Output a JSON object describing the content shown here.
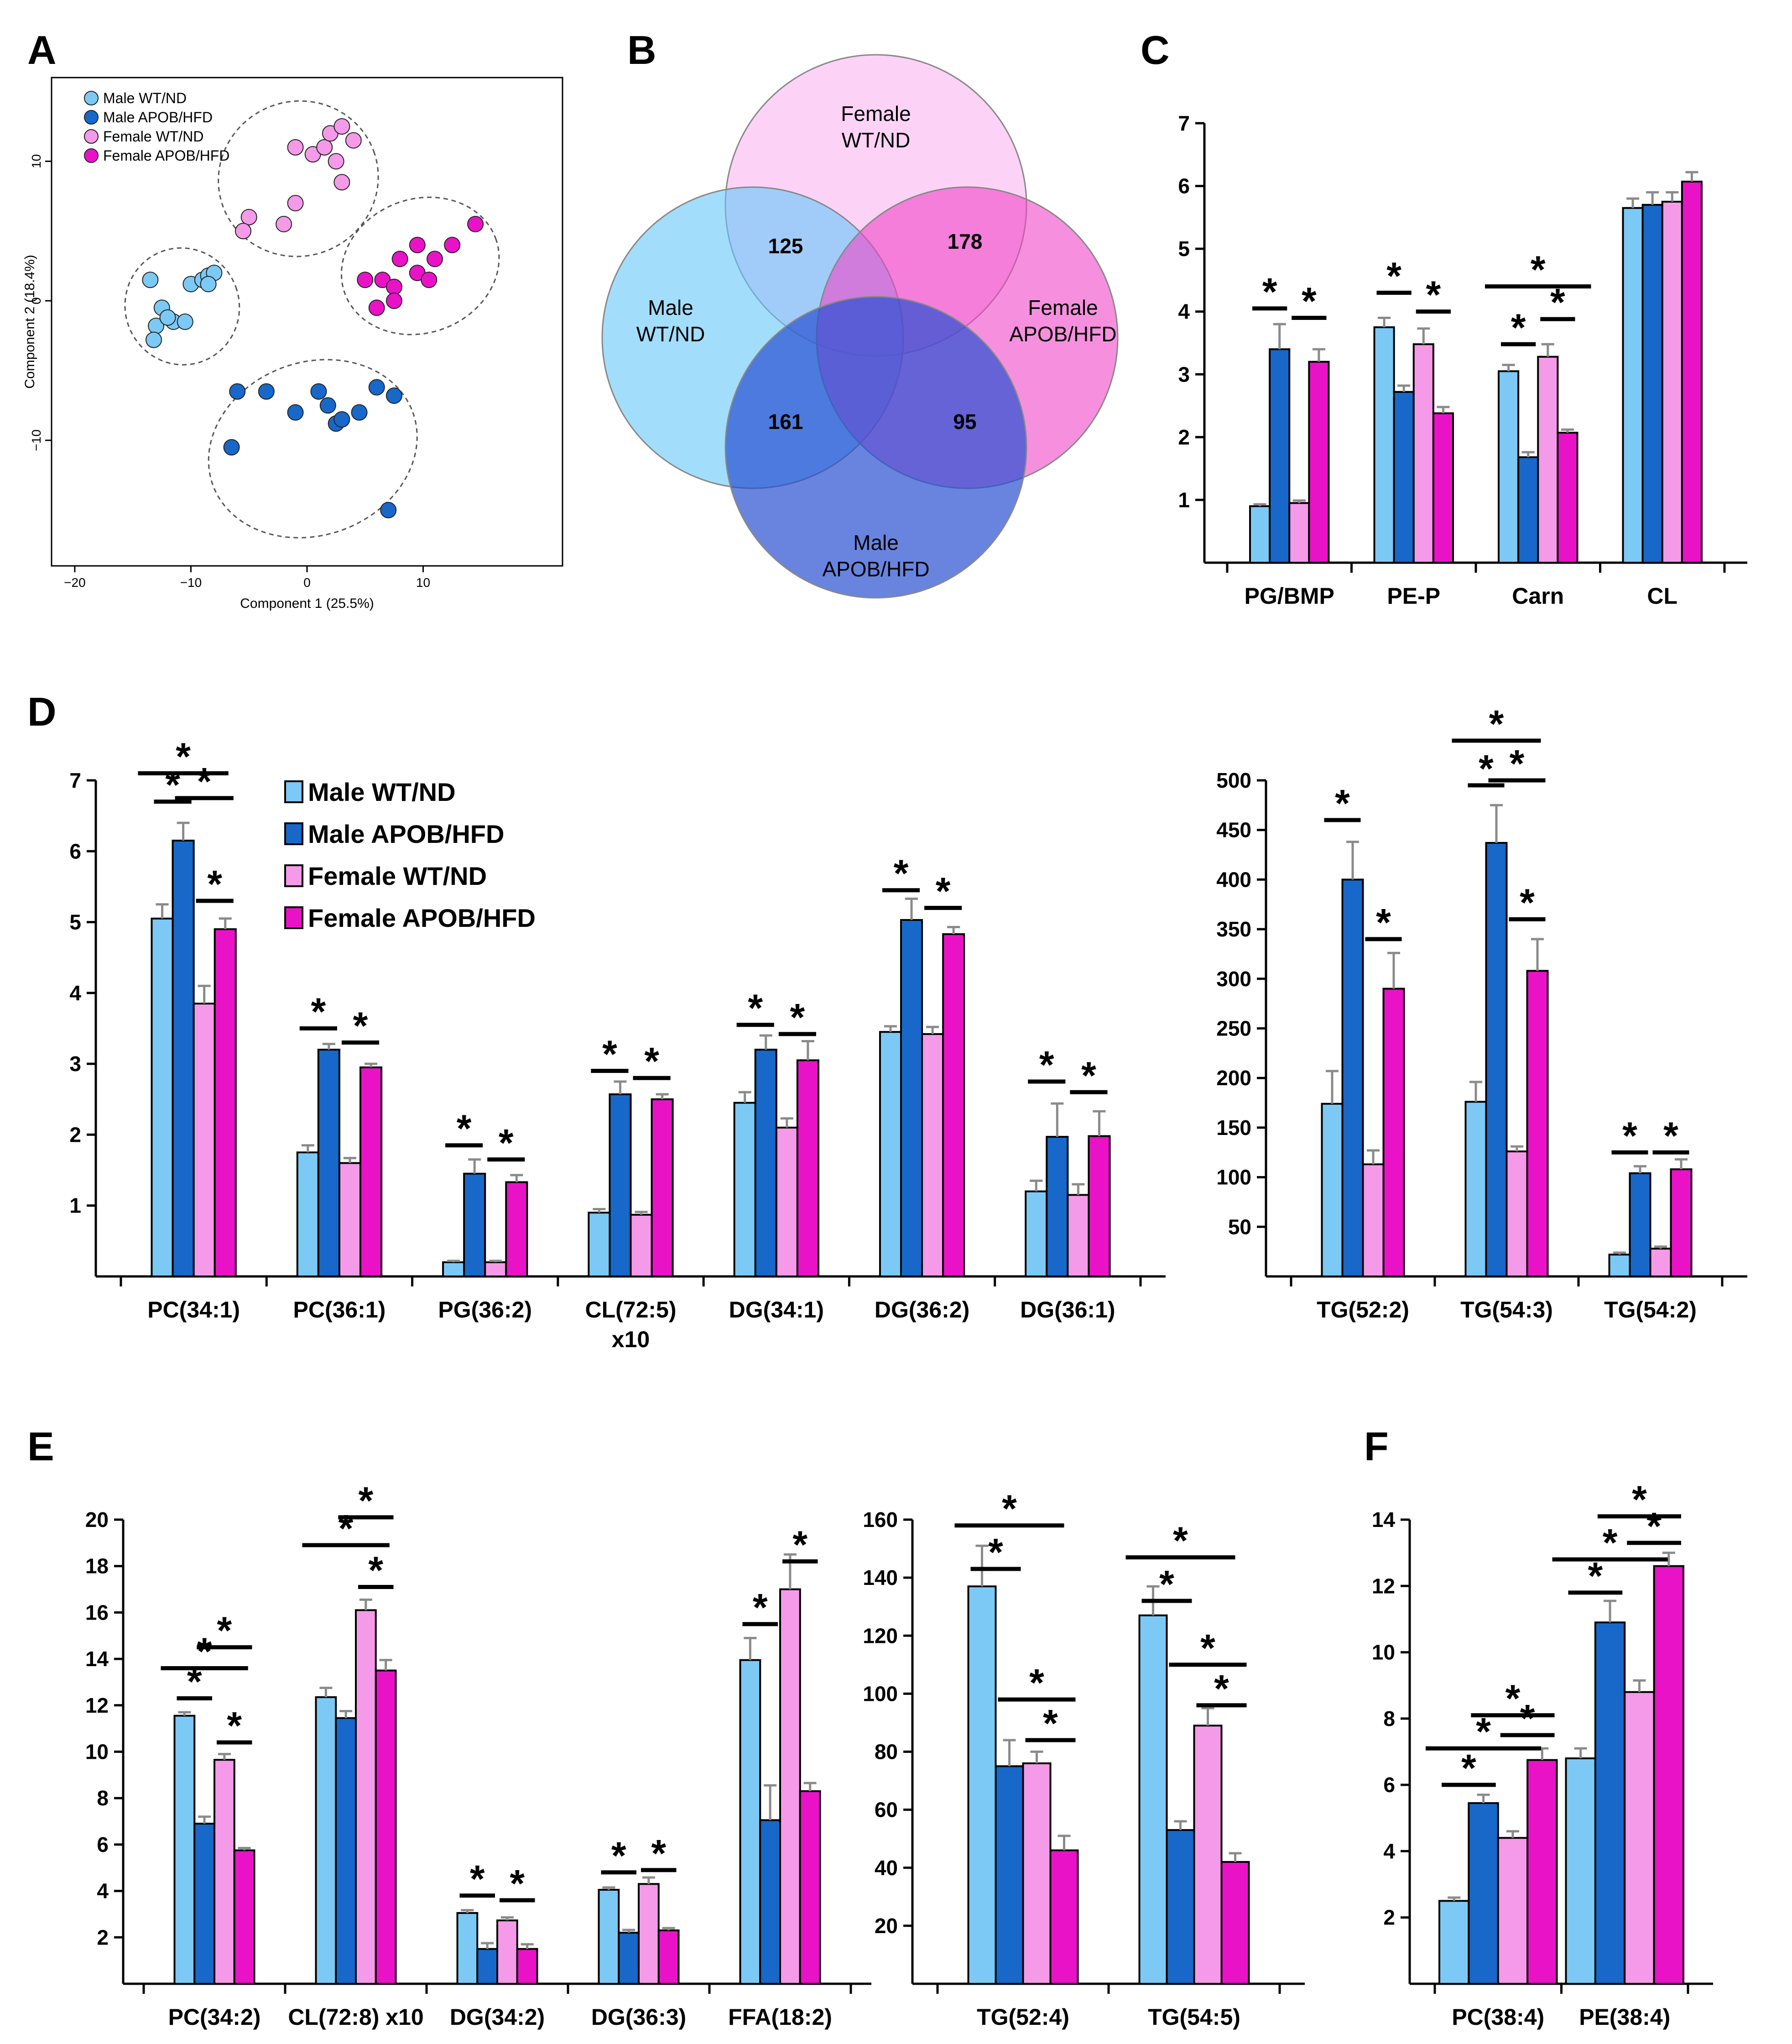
{
  "colors": {
    "male_wt": "#7cc9f5",
    "male_apob": "#1768c9",
    "female_wt": "#f49ae8",
    "female_apob": "#ea12c7"
  },
  "chart_data": [
    {
      "id": "A",
      "panel_label": "A",
      "type": "scatter",
      "xlabel": "Component 1 (25.5%)",
      "ylabel": "Component 2 (18.4%)",
      "xlim": [
        -22,
        22
      ],
      "ylim": [
        -19,
        16
      ],
      "xticks": [
        "−20",
        "−10",
        "0",
        "10"
      ],
      "yticks": [
        "−10",
        "0",
        "10"
      ],
      "series": [
        {
          "name": "Male WT/ND",
          "points": [
            [
              -13.5,
              1.5
            ],
            [
              -12.5,
              -0.5
            ],
            [
              -13,
              -1.8
            ],
            [
              -13.2,
              -2.8
            ],
            [
              -11.5,
              -1.5
            ],
            [
              -10,
              1.2
            ],
            [
              -9,
              1.5
            ],
            [
              -8.5,
              1.8
            ],
            [
              -8,
              2
            ],
            [
              -10.5,
              -1.5
            ],
            [
              -8.5,
              1.2
            ],
            [
              -12,
              -1.2
            ]
          ]
        },
        {
          "name": "Male APOB/HFD",
          "points": [
            [
              -6,
              -6.5
            ],
            [
              -3.5,
              -6.5
            ],
            [
              -1,
              -8
            ],
            [
              1,
              -6.5
            ],
            [
              1.8,
              -7.5
            ],
            [
              2.5,
              -8.8
            ],
            [
              3,
              -8.5
            ],
            [
              4.5,
              -8
            ],
            [
              6,
              -6.2
            ],
            [
              7.5,
              -6.8
            ],
            [
              -6.5,
              -10.5
            ],
            [
              7,
              -15
            ]
          ]
        },
        {
          "name": "Female WT/ND",
          "points": [
            [
              -5,
              6
            ],
            [
              -2,
              5.5
            ],
            [
              -1,
              11
            ],
            [
              0.5,
              10.5
            ],
            [
              1.5,
              11
            ],
            [
              2,
              12
            ],
            [
              3,
              12.5
            ],
            [
              4,
              11.5
            ],
            [
              2.5,
              10
            ],
            [
              3,
              8.5
            ],
            [
              -1,
              7
            ],
            [
              -5.5,
              5
            ]
          ]
        },
        {
          "name": "Female APOB/HFD",
          "points": [
            [
              5,
              1.5
            ],
            [
              6.5,
              1.5
            ],
            [
              7.5,
              1
            ],
            [
              9.5,
              2
            ],
            [
              10.5,
              1.5
            ],
            [
              11,
              3
            ],
            [
              12.5,
              4
            ],
            [
              14.5,
              5.5
            ],
            [
              8,
              3
            ],
            [
              9.5,
              4
            ],
            [
              7.5,
              0
            ],
            [
              6,
              -0.5
            ]
          ]
        }
      ],
      "legend": [
        "Male WT/ND",
        "Male APOB/HFD",
        "Female WT/ND",
        "Female APOB/HFD"
      ]
    },
    {
      "id": "B",
      "panel_label": "B",
      "type": "venn",
      "sets": [
        {
          "name": "Female",
          "name2": "WT/ND"
        },
        {
          "name": "Male",
          "name2": "WT/ND"
        },
        {
          "name": "Female",
          "name2": "APOB/HFD"
        },
        {
          "name": "Male",
          "name2": "APOB/HFD"
        }
      ],
      "counts": [
        "125",
        "178",
        "161",
        "95"
      ]
    },
    {
      "id": "C",
      "panel_label": "C",
      "type": "bar",
      "categories": [
        "PG/BMP",
        "PE-P",
        "Carn",
        "CL"
      ],
      "series": [
        {
          "name": "Male WT/ND",
          "values": [
            0.9,
            3.75,
            3.05,
            5.65
          ],
          "errors": [
            0.03,
            0.15,
            0.1,
            0.15
          ]
        },
        {
          "name": "Male APOB/HFD",
          "values": [
            3.4,
            2.72,
            1.68,
            5.7
          ],
          "errors": [
            0.4,
            0.1,
            0.08,
            0.2
          ]
        },
        {
          "name": "Female WT/ND",
          "values": [
            0.95,
            3.48,
            3.28,
            5.75
          ],
          "errors": [
            0.04,
            0.25,
            0.2,
            0.15
          ]
        },
        {
          "name": "Female APOB/HFD",
          "values": [
            3.2,
            2.38,
            2.07,
            6.07
          ],
          "errors": [
            0.2,
            0.1,
            0.05,
            0.15
          ]
        }
      ],
      "ylim": [
        0,
        7
      ],
      "yticks": [
        "1",
        "2",
        "3",
        "4",
        "5",
        "6",
        "7"
      ],
      "sig": [
        [
          0,
          0,
          1,
          4.05,
          0
        ],
        [
          0,
          2,
          3,
          3.9,
          0
        ],
        [
          1,
          0,
          1,
          4.3,
          0
        ],
        [
          1,
          2,
          3,
          4.0,
          0
        ],
        [
          2,
          0,
          1,
          3.48,
          0
        ],
        [
          2,
          2,
          3,
          3.88,
          0
        ],
        [
          2,
          0,
          3,
          4.4,
          1
        ]
      ]
    },
    {
      "id": "D1",
      "panel_label": "D",
      "type": "bar",
      "categories": [
        "PC(34:1)",
        "PC(36:1)",
        "PG(36:2)",
        "CL(72:5)",
        "DG(34:1)",
        "DG(36:2)",
        "DG(36:1)"
      ],
      "category_subs": [
        "",
        "",
        "",
        "x10",
        "",
        "",
        ""
      ],
      "series": [
        {
          "name": "Male WT/ND",
          "values": [
            5.05,
            1.75,
            0.2,
            0.9,
            2.45,
            3.45,
            1.2
          ],
          "errors": [
            0.2,
            0.1,
            0.02,
            0.05,
            0.15,
            0.08,
            0.15
          ]
        },
        {
          "name": "Male APOB/HFD",
          "values": [
            6.15,
            3.2,
            1.45,
            2.57,
            3.2,
            5.03,
            1.97
          ],
          "errors": [
            0.25,
            0.08,
            0.2,
            0.18,
            0.2,
            0.3,
            0.47
          ]
        },
        {
          "name": "Female WT/ND",
          "values": [
            3.85,
            1.6,
            0.2,
            0.87,
            2.1,
            3.42,
            1.15
          ],
          "errors": [
            0.25,
            0.07,
            0.02,
            0.04,
            0.13,
            0.1,
            0.15
          ]
        },
        {
          "name": "Female APOB/HFD",
          "values": [
            4.9,
            2.95,
            1.33,
            2.5,
            3.05,
            4.83,
            1.98
          ],
          "errors": [
            0.15,
            0.05,
            0.1,
            0.07,
            0.27,
            0.1,
            0.35
          ]
        }
      ],
      "ylim": [
        0,
        7
      ],
      "yticks": [
        "1",
        "2",
        "3",
        "4",
        "5",
        "6",
        "7"
      ],
      "legend": [
        "Male WT/ND",
        "Male APOB/HFD",
        "Female WT/ND",
        "Female APOB/HFD"
      ],
      "sig": [
        [
          0,
          0,
          1,
          6.7,
          0
        ],
        [
          0,
          0,
          2,
          7.1,
          1
        ],
        [
          0,
          1,
          3,
          6.75,
          0
        ],
        [
          0,
          2,
          3,
          5.3,
          0
        ],
        [
          1,
          0,
          1,
          3.5,
          0
        ],
        [
          1,
          2,
          3,
          3.3,
          0
        ],
        [
          2,
          0,
          1,
          1.85,
          0
        ],
        [
          2,
          2,
          3,
          1.65,
          0
        ],
        [
          3,
          0,
          1,
          2.9,
          0
        ],
        [
          3,
          2,
          3,
          2.8,
          0
        ],
        [
          4,
          0,
          1,
          3.55,
          0
        ],
        [
          4,
          2,
          3,
          3.42,
          0
        ],
        [
          5,
          0,
          1,
          5.45,
          0
        ],
        [
          5,
          2,
          3,
          5.2,
          0
        ],
        [
          6,
          0,
          1,
          2.75,
          0
        ],
        [
          6,
          2,
          3,
          2.6,
          0
        ]
      ]
    },
    {
      "id": "D2",
      "panel_label": "",
      "type": "bar",
      "categories": [
        "TG(52:2)",
        "TG(54:3)",
        "TG(54:2)"
      ],
      "series": [
        {
          "name": "Male WT/ND",
          "values": [
            174,
            176,
            22
          ],
          "errors": [
            33,
            20,
            2
          ]
        },
        {
          "name": "Male APOB/HFD",
          "values": [
            400,
            437,
            104
          ],
          "errors": [
            38,
            38,
            7
          ]
        },
        {
          "name": "Female WT/ND",
          "values": [
            113,
            126,
            28
          ],
          "errors": [
            14,
            5,
            2
          ]
        },
        {
          "name": "Female APOB/HFD",
          "values": [
            290,
            308,
            108
          ],
          "errors": [
            36,
            32,
            10
          ]
        }
      ],
      "ylim": [
        0,
        500
      ],
      "yticks": [
        "50",
        "100",
        "150",
        "200",
        "250",
        "300",
        "350",
        "400",
        "450",
        "500"
      ],
      "sig": [
        [
          0,
          0,
          1,
          460,
          0
        ],
        [
          0,
          2,
          3,
          340,
          0
        ],
        [
          1,
          0,
          1,
          495,
          0
        ],
        [
          1,
          0,
          2,
          540,
          1
        ],
        [
          1,
          1,
          3,
          500,
          0
        ],
        [
          1,
          2,
          3,
          360,
          0
        ],
        [
          2,
          0,
          1,
          125,
          0
        ],
        [
          2,
          2,
          3,
          125,
          0
        ]
      ]
    },
    {
      "id": "E1",
      "panel_label": "E",
      "type": "bar",
      "categories": [
        "PC(34:2)",
        "CL(72:8) x10",
        "DG(34:2)",
        "DG(36:3)",
        "FFA(18:2)"
      ],
      "series": [
        {
          "name": "Male WT/ND",
          "values": [
            11.55,
            12.35,
            3.05,
            4.05,
            13.95
          ],
          "errors": [
            0.15,
            0.4,
            0.12,
            0.1,
            0.95
          ]
        },
        {
          "name": "Male APOB/HFD",
          "values": [
            6.9,
            11.45,
            1.5,
            2.2,
            7.05
          ],
          "errors": [
            0.3,
            0.3,
            0.25,
            0.12,
            1.5
          ]
        },
        {
          "name": "Female WT/ND",
          "values": [
            9.65,
            16.1,
            2.73,
            4.3,
            17.0
          ],
          "errors": [
            0.25,
            0.45,
            0.13,
            0.28,
            1.5
          ]
        },
        {
          "name": "Female APOB/HFD",
          "values": [
            5.75,
            13.5,
            1.5,
            2.3,
            8.3
          ],
          "errors": [
            0.1,
            0.45,
            0.2,
            0.1,
            0.35
          ]
        }
      ],
      "ylim": [
        0,
        20
      ],
      "yticks": [
        "2",
        "4",
        "6",
        "8",
        "10",
        "12",
        "14",
        "16",
        "18",
        "20"
      ],
      "sig": [
        [
          0,
          0,
          1,
          12.3,
          0
        ],
        [
          0,
          0,
          2,
          13.6,
          1
        ],
        [
          0,
          1,
          3,
          14.5,
          0
        ],
        [
          0,
          2,
          3,
          10.4,
          0
        ],
        [
          1,
          0,
          2,
          18.9,
          1
        ],
        [
          1,
          1,
          3,
          20.1,
          0
        ],
        [
          1,
          2,
          3,
          17.1,
          0
        ],
        [
          2,
          0,
          1,
          3.8,
          0
        ],
        [
          2,
          2,
          3,
          3.6,
          0
        ],
        [
          3,
          0,
          1,
          4.8,
          0
        ],
        [
          3,
          2,
          3,
          4.9,
          0
        ],
        [
          4,
          0,
          1,
          15.5,
          0
        ],
        [
          4,
          2,
          3,
          18.2,
          0
        ]
      ]
    },
    {
      "id": "E2",
      "panel_label": "",
      "type": "bar",
      "categories": [
        "TG(52:4)",
        "TG(54:5)"
      ],
      "series": [
        {
          "name": "Male WT/ND",
          "values": [
            137,
            127
          ],
          "errors": [
            14,
            10
          ]
        },
        {
          "name": "Male APOB/HFD",
          "values": [
            75,
            53
          ],
          "errors": [
            9,
            3
          ]
        },
        {
          "name": "Female WT/ND",
          "values": [
            76,
            89
          ],
          "errors": [
            4,
            6
          ]
        },
        {
          "name": "Female APOB/HFD",
          "values": [
            46,
            42
          ],
          "errors": [
            5,
            3
          ]
        }
      ],
      "ylim": [
        0,
        160
      ],
      "yticks": [
        "20",
        "40",
        "60",
        "80",
        "100",
        "120",
        "140",
        "160"
      ],
      "sig": [
        [
          0,
          0,
          1,
          143,
          0
        ],
        [
          0,
          0,
          2,
          158,
          1
        ],
        [
          0,
          1,
          3,
          98,
          0
        ],
        [
          0,
          2,
          3,
          84,
          0
        ],
        [
          1,
          0,
          1,
          132,
          0
        ],
        [
          1,
          0,
          2,
          147,
          1
        ],
        [
          1,
          1,
          3,
          110,
          0
        ],
        [
          1,
          2,
          3,
          96,
          0
        ]
      ]
    },
    {
      "id": "F",
      "panel_label": "F",
      "type": "bar",
      "categories": [
        "PC(38:4)",
        "PE(38:4)"
      ],
      "series": [
        {
          "name": "Male WT/ND",
          "values": [
            2.5,
            6.8
          ],
          "errors": [
            0.1,
            0.3
          ]
        },
        {
          "name": "Male APOB/HFD",
          "values": [
            5.45,
            10.9
          ],
          "errors": [
            0.25,
            0.65
          ]
        },
        {
          "name": "Female WT/ND",
          "values": [
            4.4,
            8.8
          ],
          "errors": [
            0.2,
            0.35
          ]
        },
        {
          "name": "Female APOB/HFD",
          "values": [
            6.75,
            12.6
          ],
          "errors": [
            0.35,
            0.4
          ]
        }
      ],
      "ylim": [
        0,
        14
      ],
      "yticks": [
        "2",
        "4",
        "6",
        "8",
        "10",
        "12",
        "14"
      ],
      "sig": [
        [
          0,
          0,
          1,
          6.0,
          0
        ],
        [
          0,
          0,
          2,
          7.1,
          1
        ],
        [
          0,
          1,
          3,
          8.1,
          0
        ],
        [
          0,
          2,
          3,
          7.5,
          0
        ],
        [
          1,
          0,
          1,
          11.8,
          0
        ],
        [
          1,
          0,
          2,
          12.8,
          1
        ],
        [
          1,
          1,
          3,
          14.1,
          0
        ],
        [
          1,
          2,
          3,
          13.3,
          0
        ]
      ]
    }
  ]
}
